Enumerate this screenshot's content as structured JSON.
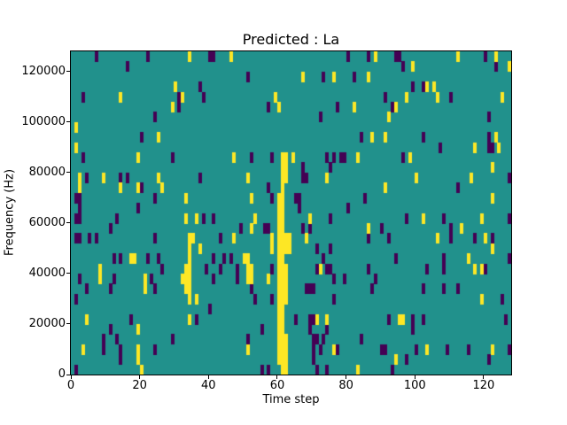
{
  "figure": {
    "title": "Predicted : La",
    "xlabel": "Time step",
    "ylabel": "Frequency (Hz)"
  },
  "chart_data": {
    "type": "heatmap",
    "title": "Predicted : La",
    "xlabel": "Time step",
    "ylabel": "Frequency (Hz)",
    "x_ticks": [
      0,
      20,
      40,
      60,
      80,
      100,
      120
    ],
    "y_ticks": [
      0,
      20000,
      40000,
      60000,
      80000,
      100000,
      120000
    ],
    "xlim": [
      0,
      128
    ],
    "ylim": [
      0,
      128000
    ],
    "grid": {
      "time_steps": 128,
      "freq_bins": 32,
      "hz_per_bin": 4000
    },
    "legend_position": "none",
    "colors": {
      "background": "#21918c",
      "low": "#440154",
      "high": "#fde725"
    },
    "description": "Mostly mid-value (teal) field with sparse low (dark purple) and high (yellow) cells; a tall yellow streak spans time steps 60-62 from ~4000 Hz up to ~88000 Hz.",
    "cells": {
      "dark": [
        [
          7,
          31
        ],
        [
          22,
          31
        ],
        [
          16,
          30
        ],
        [
          40,
          31
        ],
        [
          41,
          31
        ],
        [
          37,
          28
        ],
        [
          38,
          27
        ],
        [
          31,
          27
        ],
        [
          3,
          27
        ],
        [
          31,
          26
        ],
        [
          24,
          25
        ],
        [
          20,
          23
        ],
        [
          3,
          21
        ],
        [
          29,
          21
        ],
        [
          80,
          31
        ],
        [
          51,
          29
        ],
        [
          73,
          29
        ],
        [
          82,
          29
        ],
        [
          57,
          26
        ],
        [
          77,
          26
        ],
        [
          72,
          25
        ],
        [
          84,
          23
        ],
        [
          78,
          21
        ],
        [
          79,
          21
        ],
        [
          86,
          31
        ],
        [
          94,
          31
        ],
        [
          95,
          31
        ],
        [
          120,
          31
        ],
        [
          96,
          30
        ],
        [
          123,
          30
        ],
        [
          99,
          28
        ],
        [
          102,
          28
        ],
        [
          110,
          27
        ],
        [
          91,
          27
        ],
        [
          93,
          26
        ],
        [
          121,
          25
        ],
        [
          102,
          23
        ],
        [
          121,
          22
        ],
        [
          122,
          22
        ],
        [
          107,
          22
        ],
        [
          96,
          21
        ],
        [
          121,
          23
        ],
        [
          4,
          19
        ],
        [
          14,
          19
        ],
        [
          16,
          19
        ],
        [
          37,
          19
        ],
        [
          20,
          18
        ],
        [
          1,
          17
        ],
        [
          2,
          17
        ],
        [
          24,
          17
        ],
        [
          2,
          16
        ],
        [
          19,
          16
        ],
        [
          13,
          15
        ],
        [
          38,
          15
        ],
        [
          41,
          15
        ],
        [
          1,
          15
        ],
        [
          2,
          15
        ],
        [
          11,
          14
        ],
        [
          5,
          13
        ],
        [
          7,
          13
        ],
        [
          1,
          13
        ],
        [
          2,
          13
        ],
        [
          24,
          13
        ],
        [
          12,
          11
        ],
        [
          14,
          11
        ],
        [
          22,
          11
        ],
        [
          25,
          11
        ],
        [
          41,
          11
        ],
        [
          44,
          11
        ],
        [
          52,
          21
        ],
        [
          58,
          21
        ],
        [
          67,
          20
        ],
        [
          74,
          21
        ],
        [
          76,
          21
        ],
        [
          75,
          20
        ],
        [
          57,
          18
        ],
        [
          68,
          19
        ],
        [
          67,
          19
        ],
        [
          85,
          17
        ],
        [
          58,
          17
        ],
        [
          65,
          17
        ],
        [
          66,
          17
        ],
        [
          80,
          16
        ],
        [
          66,
          16
        ],
        [
          75,
          15
        ],
        [
          57,
          14
        ],
        [
          56,
          14
        ],
        [
          43,
          13
        ],
        [
          49,
          14
        ],
        [
          67,
          14
        ],
        [
          69,
          14
        ],
        [
          71,
          12
        ],
        [
          73,
          11
        ],
        [
          75,
          12
        ],
        [
          46,
          11
        ],
        [
          43,
          10
        ],
        [
          58,
          10
        ],
        [
          75,
          10
        ],
        [
          127,
          19
        ],
        [
          112,
          18
        ],
        [
          97,
          15
        ],
        [
          108,
          15
        ],
        [
          127,
          15
        ],
        [
          90,
          14
        ],
        [
          92,
          13
        ],
        [
          110,
          14
        ],
        [
          110,
          13
        ],
        [
          122,
          13
        ],
        [
          86,
          13
        ],
        [
          117,
          13
        ],
        [
          94,
          11
        ],
        [
          108,
          11
        ],
        [
          108,
          10
        ],
        [
          127,
          11
        ],
        [
          12,
          9
        ],
        [
          2,
          9
        ],
        [
          4,
          8
        ],
        [
          1,
          7
        ],
        [
          11,
          8
        ],
        [
          23,
          9
        ],
        [
          24,
          8
        ],
        [
          26,
          10
        ],
        [
          39,
          10
        ],
        [
          41,
          9
        ],
        [
          40,
          6
        ],
        [
          17,
          5
        ],
        [
          36,
          5
        ],
        [
          11,
          4
        ],
        [
          9,
          3
        ],
        [
          13,
          3
        ],
        [
          14,
          2
        ],
        [
          9,
          2
        ],
        [
          29,
          3
        ],
        [
          24,
          2
        ],
        [
          14,
          1
        ],
        [
          1,
          0
        ],
        [
          48,
          10
        ],
        [
          48,
          9
        ],
        [
          52,
          8
        ],
        [
          53,
          7
        ],
        [
          58,
          7
        ],
        [
          55,
          4
        ],
        [
          51,
          3
        ],
        [
          57,
          0
        ],
        [
          68,
          8
        ],
        [
          69,
          8
        ],
        [
          70,
          8
        ],
        [
          71,
          10
        ],
        [
          74,
          10
        ],
        [
          79,
          9
        ],
        [
          76,
          9
        ],
        [
          76,
          7
        ],
        [
          69,
          5
        ],
        [
          70,
          5
        ],
        [
          74,
          4
        ],
        [
          69,
          4
        ],
        [
          71,
          3
        ],
        [
          73,
          3
        ],
        [
          70,
          3
        ],
        [
          70,
          2
        ],
        [
          70,
          1
        ],
        [
          72,
          2
        ],
        [
          77,
          2
        ],
        [
          71,
          0
        ],
        [
          84,
          3
        ],
        [
          65,
          5
        ],
        [
          55,
          0
        ],
        [
          74,
          0
        ],
        [
          86,
          10
        ],
        [
          88,
          9
        ],
        [
          87,
          8
        ],
        [
          103,
          10
        ],
        [
          108,
          10
        ],
        [
          120,
          10
        ],
        [
          108,
          8
        ],
        [
          102,
          8
        ],
        [
          112,
          8
        ],
        [
          92,
          5
        ],
        [
          99,
          5
        ],
        [
          102,
          5
        ],
        [
          99,
          4
        ],
        [
          100,
          2
        ],
        [
          90,
          2
        ],
        [
          91,
          2
        ],
        [
          109,
          2
        ],
        [
          115,
          2
        ],
        [
          121,
          1
        ],
        [
          127,
          2
        ],
        [
          97,
          1
        ],
        [
          93,
          0
        ],
        [
          125,
          7
        ],
        [
          126,
          5
        ]
      ],
      "yellow": [
        [
          34,
          31
        ],
        [
          30,
          28
        ],
        [
          32,
          27
        ],
        [
          14,
          27
        ],
        [
          29,
          26
        ],
        [
          1,
          24
        ],
        [
          25,
          23
        ],
        [
          1,
          22
        ],
        [
          19,
          21
        ],
        [
          46,
          31
        ],
        [
          67,
          29
        ],
        [
          76,
          29
        ],
        [
          59,
          27
        ],
        [
          60,
          26
        ],
        [
          82,
          26
        ],
        [
          64,
          21
        ],
        [
          83,
          21
        ],
        [
          88,
          31
        ],
        [
          112,
          31
        ],
        [
          123,
          31
        ],
        [
          99,
          30
        ],
        [
          127,
          30
        ],
        [
          86,
          29
        ],
        [
          103,
          28
        ],
        [
          105,
          28
        ],
        [
          97,
          27
        ],
        [
          106,
          27
        ],
        [
          125,
          27
        ],
        [
          94,
          26
        ],
        [
          92,
          25
        ],
        [
          87,
          23
        ],
        [
          91,
          23
        ],
        [
          117,
          22
        ],
        [
          124,
          22
        ],
        [
          98,
          21
        ],
        [
          123,
          23
        ],
        [
          9,
          19
        ],
        [
          25,
          19
        ],
        [
          2,
          19
        ],
        [
          2,
          18
        ],
        [
          14,
          18
        ],
        [
          26,
          18
        ],
        [
          19,
          18
        ],
        [
          33,
          17
        ],
        [
          33,
          15
        ],
        [
          36,
          15
        ],
        [
          35,
          13
        ],
        [
          34,
          13
        ],
        [
          34,
          12
        ],
        [
          34,
          11
        ],
        [
          17,
          11
        ],
        [
          18,
          11
        ],
        [
          37,
          12
        ],
        [
          47,
          21
        ],
        [
          51,
          19
        ],
        [
          74,
          19
        ],
        [
          52,
          17
        ],
        [
          53,
          15
        ],
        [
          69,
          15
        ],
        [
          52,
          14
        ],
        [
          58,
          13
        ],
        [
          58,
          12
        ],
        [
          47,
          13
        ],
        [
          68,
          13
        ],
        [
          50,
          11
        ],
        [
          51,
          11
        ],
        [
          122,
          20
        ],
        [
          100,
          19
        ],
        [
          116,
          19
        ],
        [
          91,
          18
        ],
        [
          122,
          17
        ],
        [
          102,
          15
        ],
        [
          119,
          15
        ],
        [
          86,
          14
        ],
        [
          113,
          14
        ],
        [
          106,
          13
        ],
        [
          120,
          13
        ],
        [
          122,
          12
        ],
        [
          115,
          11
        ],
        [
          119,
          10
        ],
        [
          8,
          10
        ],
        [
          8,
          9
        ],
        [
          21,
          9
        ],
        [
          21,
          8
        ],
        [
          33,
          10
        ],
        [
          34,
          10
        ],
        [
          32,
          9
        ],
        [
          33,
          9
        ],
        [
          34,
          9
        ],
        [
          33,
          8
        ],
        [
          34,
          8
        ],
        [
          34,
          7
        ],
        [
          36,
          7
        ],
        [
          4,
          5
        ],
        [
          34,
          5
        ],
        [
          19,
          4
        ],
        [
          3,
          2
        ],
        [
          19,
          2
        ],
        [
          19,
          1
        ],
        [
          20,
          0
        ],
        [
          51,
          10
        ],
        [
          52,
          10
        ],
        [
          51,
          9
        ],
        [
          52,
          9
        ],
        [
          57,
          9
        ],
        [
          51,
          2
        ],
        [
          72,
          10
        ],
        [
          71,
          5
        ],
        [
          74,
          5
        ],
        [
          76,
          2
        ],
        [
          83,
          0
        ],
        [
          95,
          5
        ],
        [
          96,
          5
        ],
        [
          117,
          10
        ],
        [
          119,
          7
        ],
        [
          103,
          2
        ],
        [
          122,
          2
        ],
        [
          94,
          1
        ],
        [
          60,
          1
        ],
        [
          60,
          2
        ],
        [
          60,
          3
        ],
        [
          60,
          4
        ],
        [
          60,
          5
        ],
        [
          60,
          6
        ],
        [
          60,
          7
        ],
        [
          60,
          8
        ],
        [
          60,
          9
        ],
        [
          60,
          10
        ],
        [
          60,
          11
        ],
        [
          60,
          12
        ],
        [
          60,
          13
        ],
        [
          60,
          14
        ],
        [
          60,
          15
        ],
        [
          60,
          16
        ],
        [
          60,
          17
        ],
        [
          61,
          0
        ],
        [
          61,
          1
        ],
        [
          61,
          2
        ],
        [
          61,
          3
        ],
        [
          61,
          4
        ],
        [
          61,
          5
        ],
        [
          61,
          6
        ],
        [
          61,
          7
        ],
        [
          61,
          8
        ],
        [
          61,
          9
        ],
        [
          61,
          10
        ],
        [
          61,
          11
        ],
        [
          61,
          12
        ],
        [
          61,
          13
        ],
        [
          61,
          14
        ],
        [
          61,
          15
        ],
        [
          61,
          16
        ],
        [
          61,
          17
        ],
        [
          61,
          18
        ],
        [
          61,
          19
        ],
        [
          61,
          20
        ],
        [
          61,
          21
        ],
        [
          62,
          0
        ],
        [
          62,
          1
        ],
        [
          62,
          2
        ],
        [
          62,
          3
        ],
        [
          62,
          7
        ],
        [
          62,
          8
        ],
        [
          62,
          9
        ],
        [
          62,
          10
        ],
        [
          62,
          12
        ],
        [
          62,
          13
        ],
        [
          62,
          19
        ],
        [
          62,
          20
        ],
        [
          62,
          21
        ],
        [
          63,
          13
        ],
        [
          63,
          12
        ]
      ]
    }
  }
}
